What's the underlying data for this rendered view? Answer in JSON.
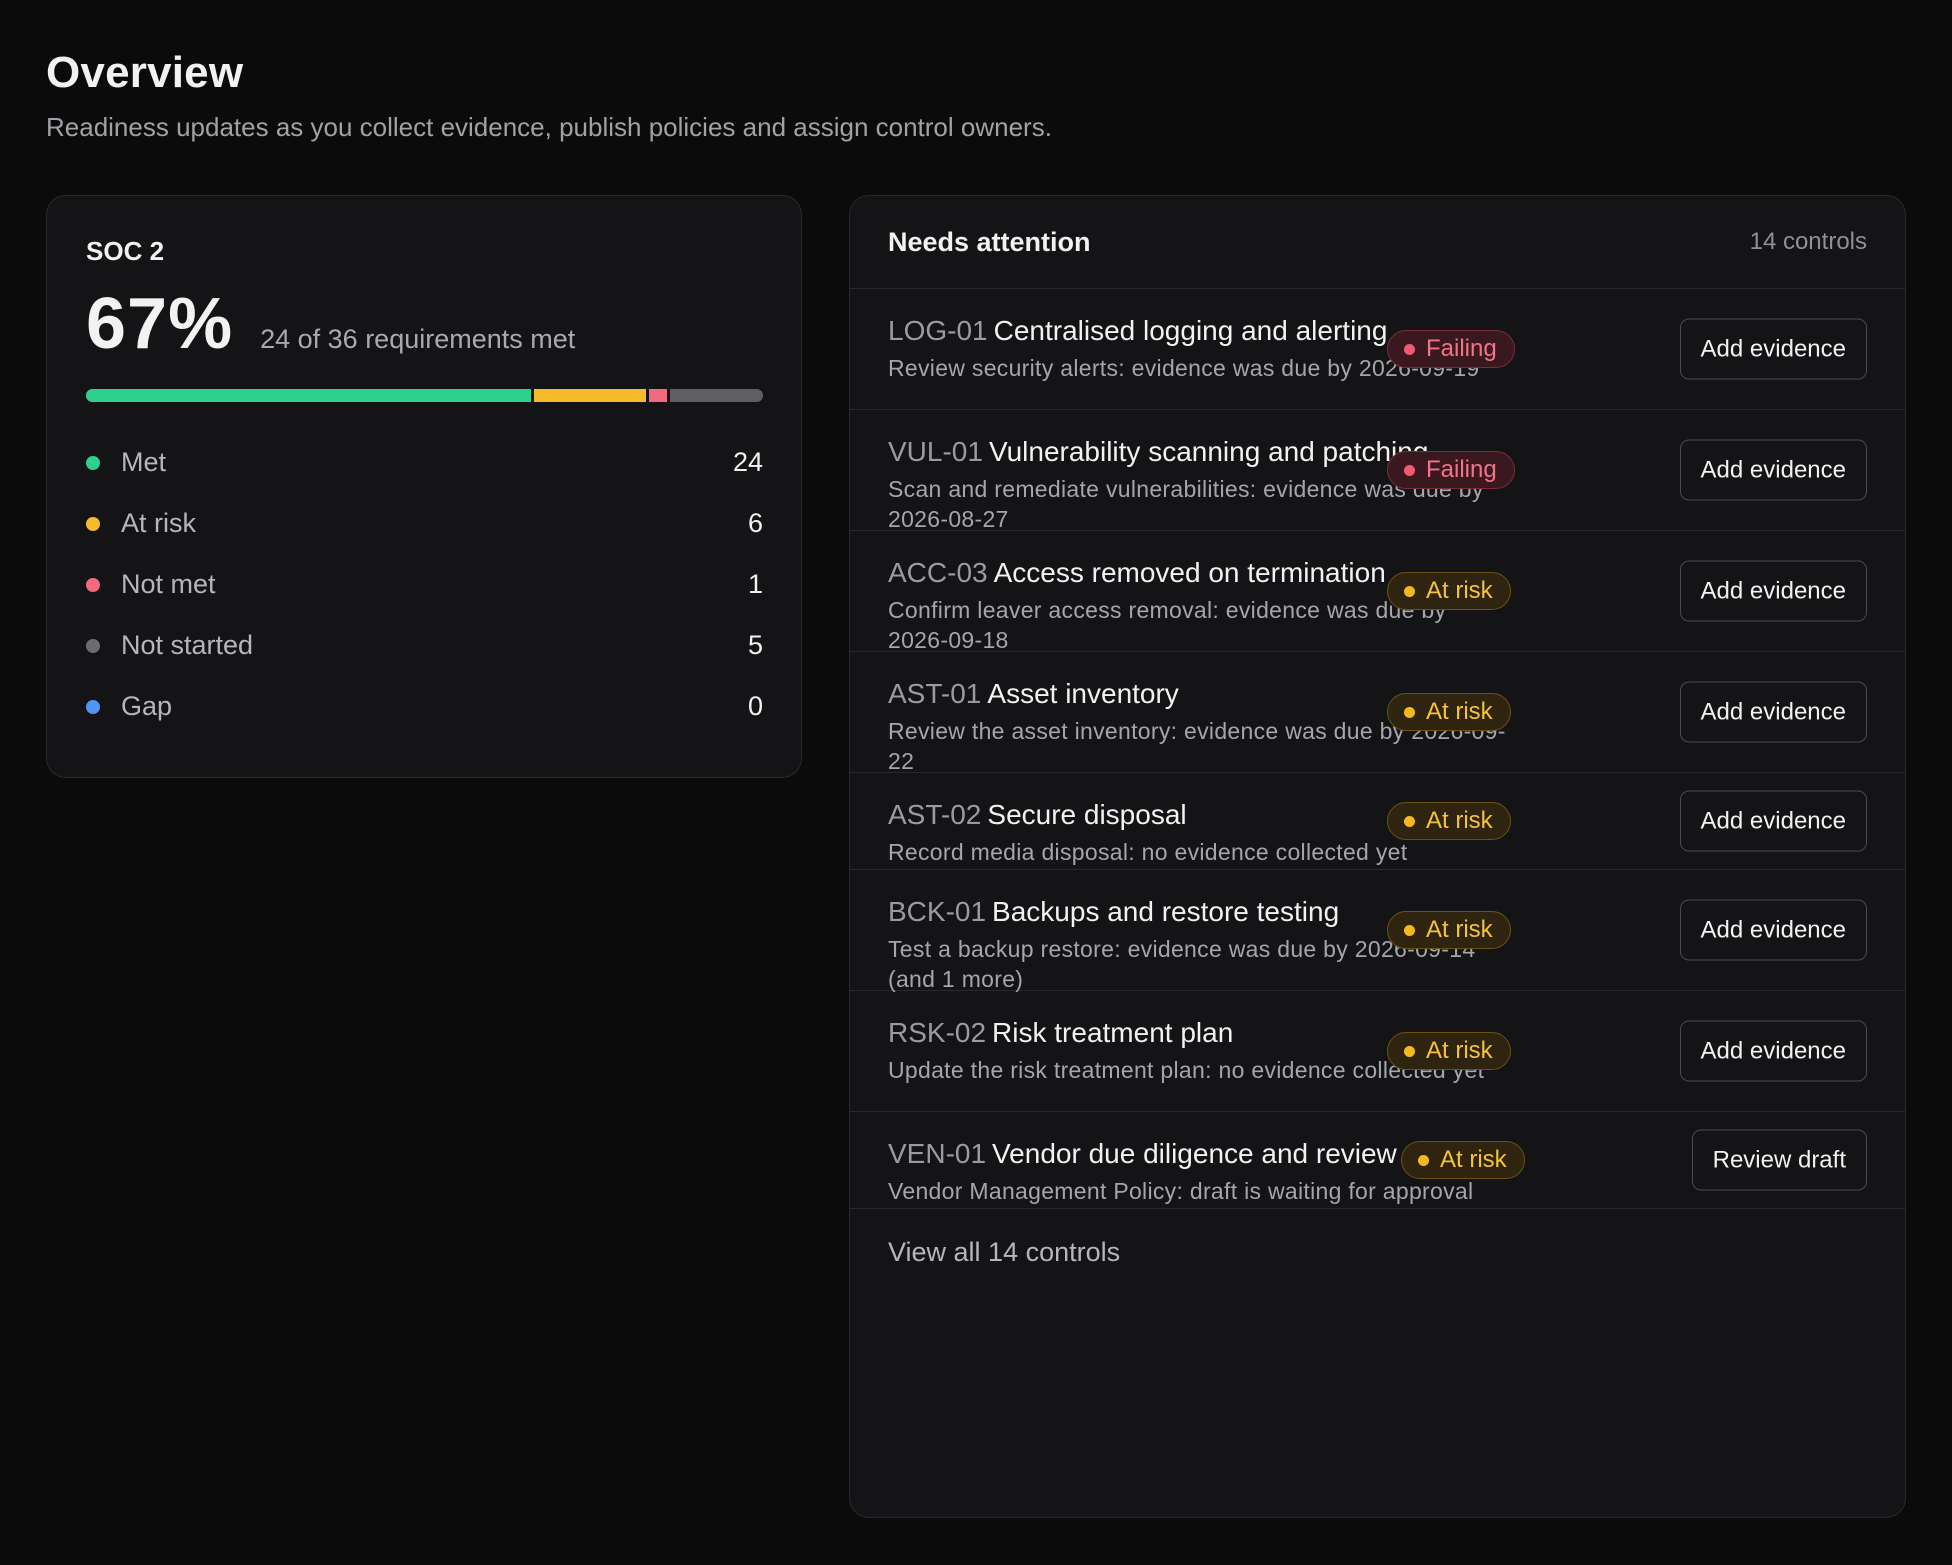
{
  "page": {
    "title": "Overview",
    "subtitle": "Readiness updates as you collect evidence, publish policies and assign control owners."
  },
  "soc": {
    "label": "SOC 2",
    "percent": "67%",
    "met_text": "24 of 36 requirements met",
    "progress": [
      {
        "name": "Met",
        "fraction": 0.6667,
        "color": "#2fd08e"
      },
      {
        "name": "At risk",
        "fraction": 0.1667,
        "color": "#f5bb2b"
      },
      {
        "name": "Not met",
        "fraction": 0.0278,
        "color": "#f26a80"
      },
      {
        "name": "Not started",
        "fraction": 0.1388,
        "color": "#5e5e64"
      }
    ],
    "legend": [
      {
        "label": "Met",
        "value": "24",
        "color": "#2fd08e"
      },
      {
        "label": "At risk",
        "value": "6",
        "color": "#f5bb2b"
      },
      {
        "label": "Not met",
        "value": "1",
        "color": "#f26a80"
      },
      {
        "label": "Not started",
        "value": "5",
        "color": "#6b6b72"
      },
      {
        "label": "Gap",
        "value": "0",
        "color": "#4f95f5"
      }
    ]
  },
  "attention": {
    "title": "Needs attention",
    "count": "14 controls",
    "items": [
      {
        "code": "LOG-01",
        "name": "Centralised logging and alerting",
        "desc": "Review security alerts: evidence was due by 2026-09-19",
        "status": "Failing",
        "action": "Add evidence"
      },
      {
        "code": "VUL-01",
        "name": "Vulnerability scanning and patching",
        "desc": "Scan and remediate vulnerabilities: evidence was due by 2026-08-27",
        "status": "Failing",
        "action": "Add evidence"
      },
      {
        "code": "ACC-03",
        "name": "Access removed on termination",
        "desc": "Confirm leaver access removal: evidence was due by 2026-09-18",
        "status": "At risk",
        "action": "Add evidence"
      },
      {
        "code": "AST-01",
        "name": "Asset inventory",
        "desc": "Review the asset inventory: evidence was due by 2026-09-22",
        "status": "At risk",
        "action": "Add evidence"
      },
      {
        "code": "AST-02",
        "name": "Secure disposal",
        "desc": "Record media disposal: no evidence collected yet",
        "status": "At risk",
        "action": "Add evidence"
      },
      {
        "code": "BCK-01",
        "name": "Backups and restore testing",
        "desc": "Test a backup restore: evidence was due by 2026-09-14 (and 1 more)",
        "status": "At risk",
        "action": "Add evidence"
      },
      {
        "code": "RSK-02",
        "name": "Risk treatment plan",
        "desc": "Update the risk treatment plan: no evidence collected yet",
        "status": "At risk",
        "action": "Add evidence"
      },
      {
        "code": "VEN-01",
        "name": "Vendor due diligence and review",
        "desc": "Vendor Management Policy: draft is waiting for approval",
        "status": "At risk",
        "action": "Review draft"
      }
    ],
    "view_all": "View all 14 controls"
  }
}
